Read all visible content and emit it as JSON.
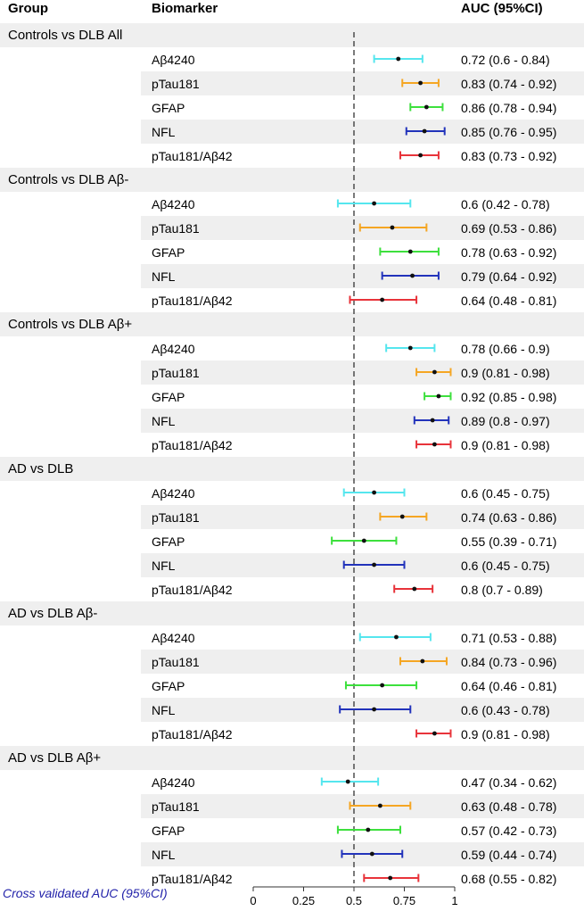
{
  "chart_data": {
    "type": "forest",
    "headers": {
      "group": "Group",
      "biomarker": "Biomarker",
      "auc": "AUC (95%CI)"
    },
    "xlabel": "Cross validated AUC (95%CI)",
    "xlim": [
      0,
      1
    ],
    "reference_line": 0.5,
    "x_ticks": [
      {
        "value": 0,
        "label": "0"
      },
      {
        "value": 0.25,
        "label": "0.25"
      },
      {
        "value": 0.5,
        "label": "0.5"
      },
      {
        "value": 0.75,
        "label": "0.75"
      },
      {
        "value": 1,
        "label": "1"
      }
    ],
    "marker_colors": {
      "Aβ4240": "#55e6ee",
      "pTau181": "#f5a623",
      "GFAP": "#3de03d",
      "NFL": "#2233bb",
      "pTau181/Aβ42": "#e8333a"
    },
    "groups": [
      {
        "name": "Controls vs DLB All",
        "rows": [
          {
            "biomarker": "Aβ4240",
            "auc": 0.72,
            "lo": 0.6,
            "hi": 0.84,
            "label": "0.72 (0.6 - 0.84)"
          },
          {
            "biomarker": "pTau181",
            "auc": 0.83,
            "lo": 0.74,
            "hi": 0.92,
            "label": "0.83 (0.74 - 0.92)"
          },
          {
            "biomarker": "GFAP",
            "auc": 0.86,
            "lo": 0.78,
            "hi": 0.94,
            "label": "0.86 (0.78 - 0.94)"
          },
          {
            "biomarker": "NFL",
            "auc": 0.85,
            "lo": 0.76,
            "hi": 0.95,
            "label": "0.85 (0.76 - 0.95)"
          },
          {
            "biomarker": "pTau181/Aβ42",
            "auc": 0.83,
            "lo": 0.73,
            "hi": 0.92,
            "label": "0.83 (0.73 - 0.92)"
          }
        ]
      },
      {
        "name": "Controls vs DLB Aβ-",
        "rows": [
          {
            "biomarker": "Aβ4240",
            "auc": 0.6,
            "lo": 0.42,
            "hi": 0.78,
            "label": "0.6 (0.42 - 0.78)"
          },
          {
            "biomarker": "pTau181",
            "auc": 0.69,
            "lo": 0.53,
            "hi": 0.86,
            "label": "0.69 (0.53 - 0.86)"
          },
          {
            "biomarker": "GFAP",
            "auc": 0.78,
            "lo": 0.63,
            "hi": 0.92,
            "label": "0.78 (0.63 - 0.92)"
          },
          {
            "biomarker": "NFL",
            "auc": 0.79,
            "lo": 0.64,
            "hi": 0.92,
            "label": "0.79 (0.64 - 0.92)"
          },
          {
            "biomarker": "pTau181/Aβ42",
            "auc": 0.64,
            "lo": 0.48,
            "hi": 0.81,
            "label": "0.64 (0.48 - 0.81)"
          }
        ]
      },
      {
        "name": "Controls vs DLB Aβ+",
        "rows": [
          {
            "biomarker": "Aβ4240",
            "auc": 0.78,
            "lo": 0.66,
            "hi": 0.9,
            "label": "0.78 (0.66 - 0.9)"
          },
          {
            "biomarker": "pTau181",
            "auc": 0.9,
            "lo": 0.81,
            "hi": 0.98,
            "label": "0.9 (0.81 - 0.98)"
          },
          {
            "biomarker": "GFAP",
            "auc": 0.92,
            "lo": 0.85,
            "hi": 0.98,
            "label": "0.92 (0.85 - 0.98)"
          },
          {
            "biomarker": "NFL",
            "auc": 0.89,
            "lo": 0.8,
            "hi": 0.97,
            "label": "0.89 (0.8 - 0.97)"
          },
          {
            "biomarker": "pTau181/Aβ42",
            "auc": 0.9,
            "lo": 0.81,
            "hi": 0.98,
            "label": "0.9 (0.81 - 0.98)"
          }
        ]
      },
      {
        "name": "AD vs DLB",
        "rows": [
          {
            "biomarker": "Aβ4240",
            "auc": 0.6,
            "lo": 0.45,
            "hi": 0.75,
            "label": "0.6 (0.45 - 0.75)"
          },
          {
            "biomarker": "pTau181",
            "auc": 0.74,
            "lo": 0.63,
            "hi": 0.86,
            "label": "0.74 (0.63 - 0.86)"
          },
          {
            "biomarker": "GFAP",
            "auc": 0.55,
            "lo": 0.39,
            "hi": 0.71,
            "label": "0.55 (0.39 - 0.71)"
          },
          {
            "biomarker": "NFL",
            "auc": 0.6,
            "lo": 0.45,
            "hi": 0.75,
            "label": "0.6 (0.45 - 0.75)"
          },
          {
            "biomarker": "pTau181/Aβ42",
            "auc": 0.8,
            "lo": 0.7,
            "hi": 0.89,
            "label": "0.8 (0.7 - 0.89)"
          }
        ]
      },
      {
        "name": "AD vs DLB Aβ-",
        "rows": [
          {
            "biomarker": "Aβ4240",
            "auc": 0.71,
            "lo": 0.53,
            "hi": 0.88,
            "label": "0.71 (0.53 - 0.88)"
          },
          {
            "biomarker": "pTau181",
            "auc": 0.84,
            "lo": 0.73,
            "hi": 0.96,
            "label": "0.84 (0.73 - 0.96)"
          },
          {
            "biomarker": "GFAP",
            "auc": 0.64,
            "lo": 0.46,
            "hi": 0.81,
            "label": "0.64 (0.46 - 0.81)"
          },
          {
            "biomarker": "NFL",
            "auc": 0.6,
            "lo": 0.43,
            "hi": 0.78,
            "label": "0.6 (0.43 - 0.78)"
          },
          {
            "biomarker": "pTau181/Aβ42",
            "auc": 0.9,
            "lo": 0.81,
            "hi": 0.98,
            "label": "0.9 (0.81 - 0.98)"
          }
        ]
      },
      {
        "name": "AD vs DLB Aβ+",
        "rows": [
          {
            "biomarker": "Aβ4240",
            "auc": 0.47,
            "lo": 0.34,
            "hi": 0.62,
            "label": "0.47 (0.34 - 0.62)"
          },
          {
            "biomarker": "pTau181",
            "auc": 0.63,
            "lo": 0.48,
            "hi": 0.78,
            "label": "0.63 (0.48 - 0.78)"
          },
          {
            "biomarker": "GFAP",
            "auc": 0.57,
            "lo": 0.42,
            "hi": 0.73,
            "label": "0.57 (0.42 - 0.73)"
          },
          {
            "biomarker": "NFL",
            "auc": 0.59,
            "lo": 0.44,
            "hi": 0.74,
            "label": "0.59 (0.44 - 0.74)"
          },
          {
            "biomarker": "pTau181/Aβ42",
            "auc": 0.68,
            "lo": 0.55,
            "hi": 0.82,
            "label": "0.68 (0.55 - 0.82)"
          }
        ]
      }
    ]
  }
}
